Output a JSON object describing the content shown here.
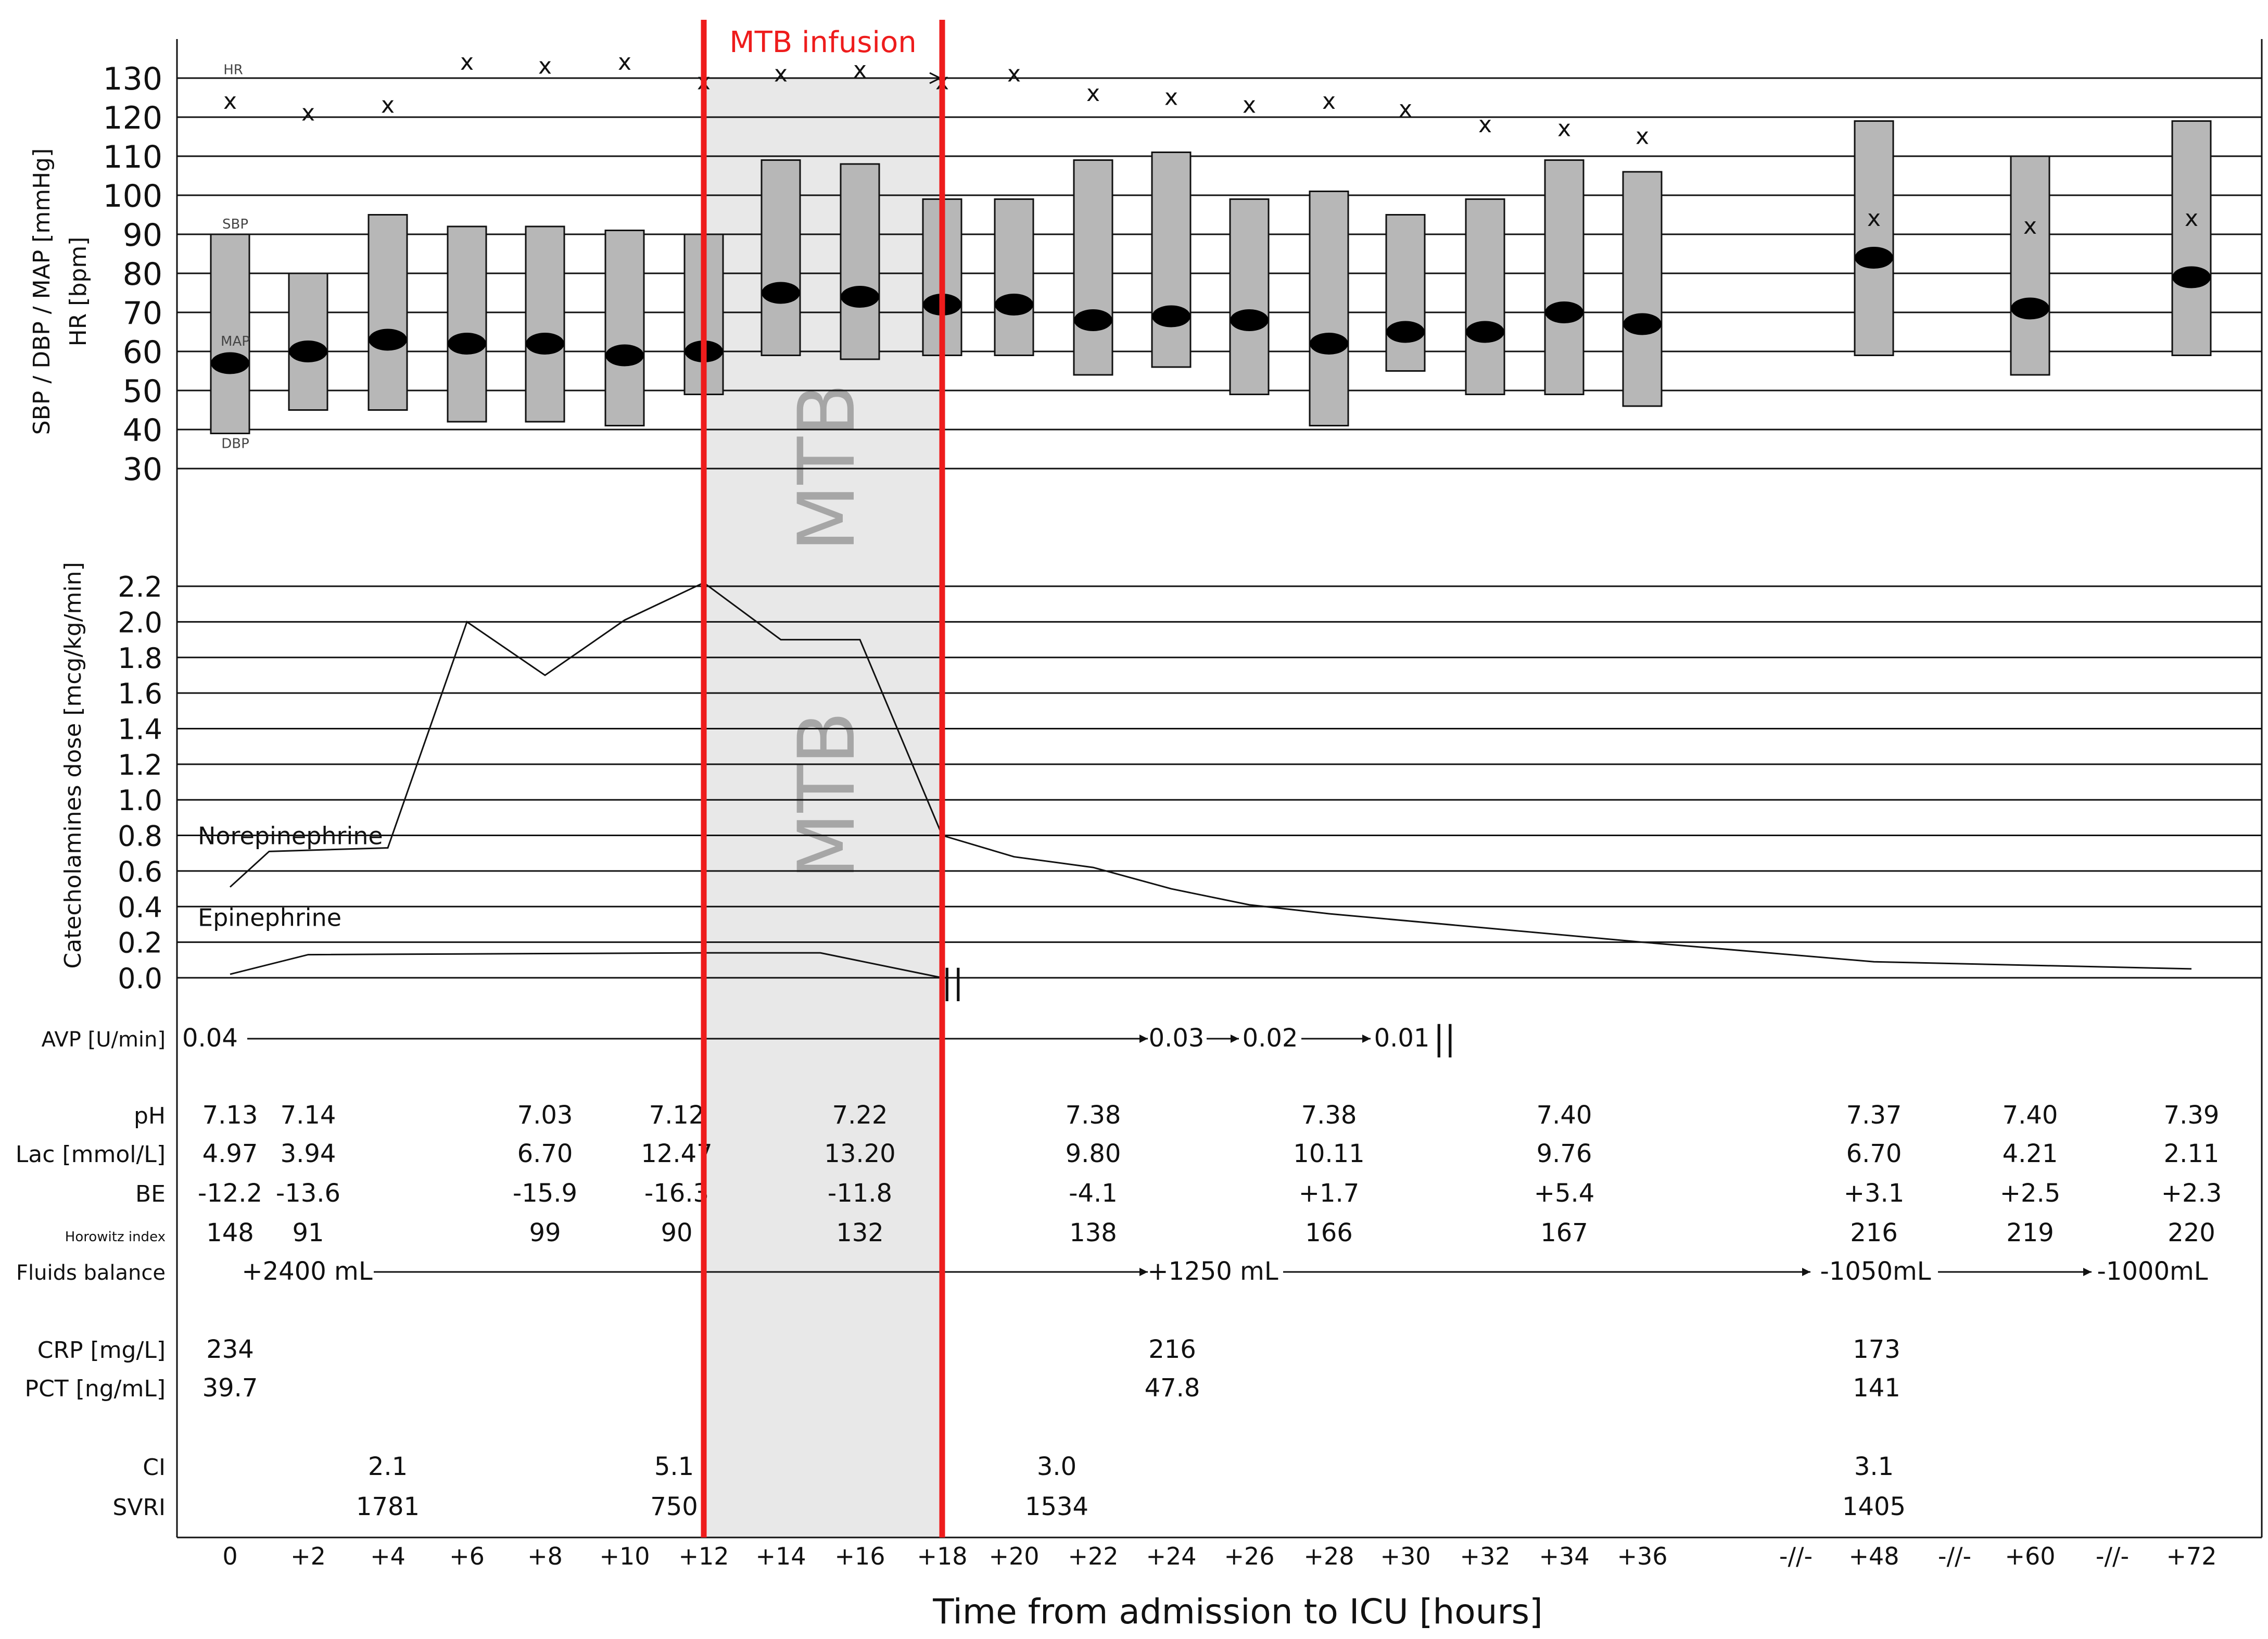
{
  "chart_data": [
    {
      "type": "range-bar",
      "panel": "hemodynamics",
      "ylabel_lines": [
        "SBP / DBP / MAP [mmHg]",
        "HR [bpm]"
      ],
      "yticks": [
        130,
        120,
        110,
        100,
        90,
        80,
        70,
        60,
        50,
        40,
        30
      ],
      "ylim": [
        30,
        130
      ],
      "series_labels": {
        "hr": "HR",
        "sbp": "SBP",
        "map": "MAP",
        "dbp": "DBP"
      },
      "hr_marker": "x",
      "time_labels": [
        "0",
        "+2",
        "+4",
        "+6",
        "+8",
        "+10",
        "+12",
        "+14",
        "+16",
        "+18",
        "+20",
        "+22",
        "+24",
        "+26",
        "+28",
        "+30",
        "+32",
        "+34",
        "+36",
        "+48",
        "+60",
        "+72"
      ],
      "sbp": [
        90,
        80,
        95,
        92,
        92,
        91,
        90,
        109,
        108,
        99,
        99,
        109,
        111,
        99,
        101,
        95,
        99,
        109,
        106,
        119,
        110,
        119
      ],
      "dbp": [
        39,
        45,
        45,
        42,
        42,
        41,
        49,
        59,
        58,
        59,
        59,
        54,
        56,
        49,
        41,
        55,
        49,
        49,
        46,
        59,
        54,
        59
      ],
      "map": [
        57,
        60,
        63,
        62,
        62,
        59,
        60,
        75,
        74,
        72,
        72,
        68,
        69,
        68,
        62,
        65,
        65,
        70,
        67,
        84,
        71,
        79
      ],
      "hr": [
        124,
        121,
        123,
        134,
        133,
        134,
        129,
        131,
        132,
        129,
        131,
        126,
        125,
        123,
        124,
        122,
        118,
        117,
        115,
        94,
        92,
        94
      ]
    },
    {
      "type": "line",
      "panel": "catecholamines",
      "ylabel": "Catecholamines dose [mcg/kg/min]",
      "ylim": [
        0,
        2.2
      ],
      "yticks": [
        "2.2",
        "2.0",
        "1.8",
        "1.6",
        "1.4",
        "1.2",
        "1.0",
        "0.8",
        "0.6",
        "0.4",
        "0.2",
        "0.0"
      ],
      "series": [
        {
          "name": "Norepinephrine",
          "x_hours": [
            0,
            1,
            4,
            6,
            8,
            10,
            12,
            14,
            16,
            18,
            20,
            22,
            24,
            26,
            28,
            36,
            48,
            72
          ],
          "values": [
            0.51,
            0.71,
            0.73,
            2.0,
            1.7,
            2.01,
            2.22,
            1.9,
            1.9,
            0.8,
            0.68,
            0.62,
            0.5,
            0.41,
            0.36,
            0.2,
            0.09,
            0.05
          ]
        },
        {
          "name": "Epinephrine",
          "x_hours": [
            0,
            2,
            12,
            15,
            18
          ],
          "values": [
            0.02,
            0.13,
            0.14,
            0.14,
            0.0
          ]
        }
      ]
    }
  ],
  "title": "MTB infusion",
  "mtb_watermark": "MTB",
  "xlabel": "Time from admission to ICU [hours]",
  "axis_break": "-//-",
  "stop_mark": "||",
  "avp": {
    "label": "AVP  [U/min]",
    "initial": "0.04",
    "steps": [
      "0.03",
      "0.02",
      "0.01"
    ]
  },
  "labs": {
    "ph": {
      "label": "pH",
      "values": [
        "7.13",
        "7.14",
        "7.03",
        "7.12",
        "7.22",
        "7.38",
        "7.38",
        "7.40",
        "7.37",
        "7.40",
        "7.39"
      ]
    },
    "lac": {
      "label": "Lac [mmol/L]",
      "values": [
        "4.97",
        "3.94",
        "6.70",
        "12.47",
        "13.20",
        "9.80",
        "10.11",
        "9.76",
        "6.70",
        "4.21",
        "2.11"
      ]
    },
    "be": {
      "label": "BE",
      "values": [
        "-12.2",
        "-13.6",
        "-15.9",
        "-16.3",
        "-11.8",
        "-4.1",
        "+1.7",
        "+5.4",
        "+3.1",
        "+2.5",
        "+2.3"
      ]
    },
    "horowitz": {
      "label": "Horowitz index",
      "values": [
        "148",
        "91",
        "99",
        "90",
        "132",
        "138",
        "166",
        "167",
        "216",
        "219",
        "220"
      ]
    }
  },
  "fluids": {
    "label": "Fluids balance",
    "values": [
      "+2400 mL",
      "+1250 mL",
      "-1050mL",
      "-1000mL"
    ]
  },
  "crp": {
    "label": "CRP [mg/L]",
    "values": [
      "234",
      "216",
      "173"
    ]
  },
  "pct": {
    "label": "PCT [ng/mL]",
    "values": [
      "39.7",
      "47.8",
      "141"
    ]
  },
  "ci": {
    "label": "CI",
    "values": [
      "2.1",
      "5.1",
      "3.0",
      "3.1"
    ]
  },
  "svri": {
    "label": "SVRI",
    "values": [
      "1781",
      "750",
      "1534",
      "1405"
    ]
  },
  "colors": {
    "mtb_line": "#ee1c1c",
    "mtb_band": "#e8e8e8",
    "watermark": "#a6a6a6",
    "bar_fill": "#b7b7b7",
    "ink": "#111111"
  }
}
